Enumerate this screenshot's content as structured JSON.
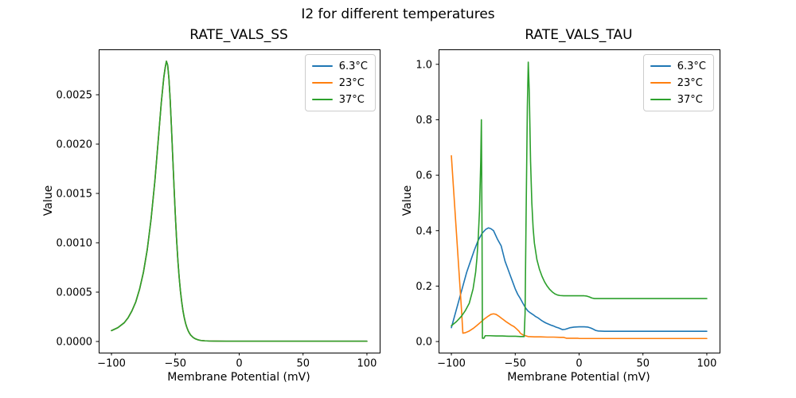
{
  "figure": {
    "suptitle": "I2 for different temperatures",
    "background_color": "#ffffff",
    "text_color": "#000000",
    "legend_border_color": "#cccccc"
  },
  "chart_data": [
    {
      "type": "line",
      "title": "RATE_VALS_SS",
      "xlabel": "Membrane Potential (mV)",
      "ylabel": "Value",
      "xlim": [
        -110,
        110
      ],
      "ylim": [
        -0.000113,
        0.00296
      ],
      "grid": false,
      "legend_position": "upper right",
      "xticks": {
        "values": [
          -100,
          -50,
          0,
          50,
          100
        ],
        "labels": [
          "−100",
          "−50",
          "0",
          "50",
          "100"
        ]
      },
      "yticks": {
        "values": [
          0.0,
          0.0005,
          0.001,
          0.0015,
          0.002,
          0.0025
        ],
        "labels": [
          "0.0000",
          "0.0005",
          "0.0010",
          "0.0015",
          "0.0020",
          "0.0025"
        ]
      },
      "overlap_note": "All three temperature curves coincide exactly; the last-drawn series (37°C, green) covers the others.",
      "shared_points": [
        [
          -100,
          0.00011
        ],
        [
          -95,
          0.00014
        ],
        [
          -90,
          0.00019
        ],
        [
          -87,
          0.00024
        ],
        [
          -84,
          0.00031
        ],
        [
          -81,
          0.0004
        ],
        [
          -78,
          0.00053
        ],
        [
          -75,
          0.0007
        ],
        [
          -72,
          0.00093
        ],
        [
          -69,
          0.00124
        ],
        [
          -66,
          0.00163
        ],
        [
          -63,
          0.0021
        ],
        [
          -61,
          0.00242
        ],
        [
          -59,
          0.00268
        ],
        [
          -58,
          0.00277
        ],
        [
          -57,
          0.00284
        ],
        [
          -56,
          0.0028
        ],
        [
          -55,
          0.00266
        ],
        [
          -54,
          0.00244
        ],
        [
          -53,
          0.00216
        ],
        [
          -52,
          0.00186
        ],
        [
          -51,
          0.00156
        ],
        [
          -50,
          0.00128
        ],
        [
          -49,
          0.00103
        ],
        [
          -48,
          0.00082
        ],
        [
          -47,
          0.00065
        ],
        [
          -46,
          0.00051
        ],
        [
          -45,
          0.0004
        ],
        [
          -44,
          0.00031
        ],
        [
          -43,
          0.00024
        ],
        [
          -42,
          0.000185
        ],
        [
          -41,
          0.000143
        ],
        [
          -40,
          0.00011
        ],
        [
          -39,
          8.5e-05
        ],
        [
          -38,
          6.5e-05
        ],
        [
          -36,
          4e-05
        ],
        [
          -34,
          2.5e-05
        ],
        [
          -32,
          1.6e-05
        ],
        [
          -30,
          1e-05
        ],
        [
          -27,
          7e-06
        ],
        [
          -24,
          5e-06
        ],
        [
          -20,
          4e-06
        ],
        [
          -10,
          3e-06
        ],
        [
          0,
          3e-06
        ],
        [
          50,
          3e-06
        ],
        [
          100,
          3e-06
        ]
      ],
      "series": [
        {
          "name": "6.3°C",
          "color": "#1f77b4"
        },
        {
          "name": "23°C",
          "color": "#ff7f0e"
        },
        {
          "name": "37°C",
          "color": "#2ca02c"
        }
      ]
    },
    {
      "type": "line",
      "title": "RATE_VALS_TAU",
      "xlabel": "Membrane Potential (mV)",
      "ylabel": "Value",
      "xlim": [
        -110,
        110
      ],
      "ylim": [
        -0.04,
        1.054
      ],
      "grid": false,
      "legend_position": "upper right",
      "xticks": {
        "values": [
          -100,
          -50,
          0,
          50,
          100
        ],
        "labels": [
          "−100",
          "−50",
          "0",
          "50",
          "100"
        ]
      },
      "yticks": {
        "values": [
          0.0,
          0.2,
          0.4,
          0.6,
          0.8,
          1.0
        ],
        "labels": [
          "0.0",
          "0.2",
          "0.4",
          "0.6",
          "0.8",
          "1.0"
        ]
      },
      "series": [
        {
          "name": "6.3°C",
          "color": "#1f77b4",
          "points": [
            [
              -100,
              0.05
            ],
            [
              -97,
              0.1
            ],
            [
              -94,
              0.15
            ],
            [
              -91,
              0.2
            ],
            [
              -88,
              0.25
            ],
            [
              -85,
              0.29
            ],
            [
              -82,
              0.33
            ],
            [
              -79,
              0.365
            ],
            [
              -76,
              0.39
            ],
            [
              -73,
              0.405
            ],
            [
              -71,
              0.41
            ],
            [
              -69,
              0.407
            ],
            [
              -67,
              0.4
            ],
            [
              -64,
              0.37
            ],
            [
              -61,
              0.345
            ],
            [
              -58,
              0.29
            ],
            [
              -56,
              0.265
            ],
            [
              -54,
              0.24
            ],
            [
              -52,
              0.215
            ],
            [
              -50,
              0.19
            ],
            [
              -48,
              0.17
            ],
            [
              -46,
              0.155
            ],
            [
              -44,
              0.138
            ],
            [
              -42,
              0.122
            ],
            [
              -40,
              0.11
            ],
            [
              -38,
              0.103
            ],
            [
              -36,
              0.097
            ],
            [
              -34,
              0.09
            ],
            [
              -32,
              0.085
            ],
            [
              -30,
              0.078
            ],
            [
              -28,
              0.072
            ],
            [
              -26,
              0.067
            ],
            [
              -24,
              0.063
            ],
            [
              -22,
              0.059
            ],
            [
              -20,
              0.056
            ],
            [
              -18,
              0.052
            ],
            [
              -16,
              0.049
            ],
            [
              -14,
              0.045
            ],
            [
              -13,
              0.043
            ],
            [
              -11,
              0.044
            ],
            [
              -9,
              0.047
            ],
            [
              -7,
              0.05
            ],
            [
              -4,
              0.052
            ],
            [
              0,
              0.053
            ],
            [
              4,
              0.053
            ],
            [
              7,
              0.052
            ],
            [
              9,
              0.049
            ],
            [
              11,
              0.045
            ],
            [
              13,
              0.04
            ],
            [
              15,
              0.038
            ],
            [
              20,
              0.037
            ],
            [
              60,
              0.037
            ],
            [
              100,
              0.037
            ]
          ]
        },
        {
          "name": "23°C",
          "color": "#ff7f0e",
          "points": [
            [
              -100,
              0.67
            ],
            [
              -98,
              0.53
            ],
            [
              -96,
              0.39
            ],
            [
              -94,
              0.25
            ],
            [
              -92,
              0.11
            ],
            [
              -91,
              0.03
            ],
            [
              -89,
              0.032
            ],
            [
              -86,
              0.038
            ],
            [
              -83,
              0.047
            ],
            [
              -80,
              0.058
            ],
            [
              -77,
              0.07
            ],
            [
              -74,
              0.082
            ],
            [
              -71,
              0.092
            ],
            [
              -69,
              0.098
            ],
            [
              -67,
              0.1
            ],
            [
              -65,
              0.098
            ],
            [
              -63,
              0.092
            ],
            [
              -61,
              0.085
            ],
            [
              -59,
              0.078
            ],
            [
              -57,
              0.071
            ],
            [
              -55,
              0.065
            ],
            [
              -53,
              0.059
            ],
            [
              -51,
              0.054
            ],
            [
              -49,
              0.046
            ],
            [
              -47,
              0.037
            ],
            [
              -46,
              0.03
            ],
            [
              -44,
              0.024
            ],
            [
              -42,
              0.021
            ],
            [
              -40,
              0.018
            ],
            [
              -35,
              0.017
            ],
            [
              -30,
              0.017
            ],
            [
              -25,
              0.016
            ],
            [
              -20,
              0.016
            ],
            [
              -15,
              0.015
            ],
            [
              -12,
              0.015
            ],
            [
              -10,
              0.012
            ],
            [
              -5,
              0.012
            ],
            [
              -1,
              0.012
            ],
            [
              0,
              0.011
            ],
            [
              50,
              0.011
            ],
            [
              100,
              0.011
            ]
          ]
        },
        {
          "name": "37°C",
          "color": "#2ca02c",
          "points": [
            [
              -100,
              0.057
            ],
            [
              -96,
              0.072
            ],
            [
              -92,
              0.092
            ],
            [
              -89,
              0.112
            ],
            [
              -86,
              0.138
            ],
            [
              -83,
              0.19
            ],
            [
              -81,
              0.25
            ],
            [
              -80,
              0.3
            ],
            [
              -79,
              0.37
            ],
            [
              -78,
              0.47
            ],
            [
              -77,
              0.65
            ],
            [
              -76.5,
              0.8
            ],
            [
              -76,
              0.4
            ],
            [
              -75.7,
              0.012
            ],
            [
              -74.5,
              0.012
            ],
            [
              -73.5,
              0.021
            ],
            [
              -70,
              0.021
            ],
            [
              -65,
              0.02
            ],
            [
              -60,
              0.02
            ],
            [
              -55,
              0.019
            ],
            [
              -50,
              0.019
            ],
            [
              -46,
              0.018
            ],
            [
              -43,
              0.018
            ],
            [
              -42.3,
              0.1
            ],
            [
              -41.5,
              0.45
            ],
            [
              -40.5,
              0.85
            ],
            [
              -39.8,
              1.008
            ],
            [
              -39,
              0.9
            ],
            [
              -38,
              0.65
            ],
            [
              -37,
              0.5
            ],
            [
              -36,
              0.41
            ],
            [
              -35,
              0.355
            ],
            [
              -33,
              0.295
            ],
            [
              -31,
              0.26
            ],
            [
              -29,
              0.235
            ],
            [
              -27,
              0.215
            ],
            [
              -25,
              0.2
            ],
            [
              -23,
              0.188
            ],
            [
              -21,
              0.179
            ],
            [
              -19,
              0.172
            ],
            [
              -17,
              0.168
            ],
            [
              -15,
              0.166
            ],
            [
              -12,
              0.165
            ],
            [
              -8,
              0.165
            ],
            [
              -4,
              0.165
            ],
            [
              0,
              0.165
            ],
            [
              4,
              0.165
            ],
            [
              6,
              0.164
            ],
            [
              8,
              0.161
            ],
            [
              10,
              0.157
            ],
            [
              12,
              0.155
            ],
            [
              30,
              0.155
            ],
            [
              70,
              0.155
            ],
            [
              100,
              0.155
            ]
          ]
        }
      ]
    }
  ]
}
